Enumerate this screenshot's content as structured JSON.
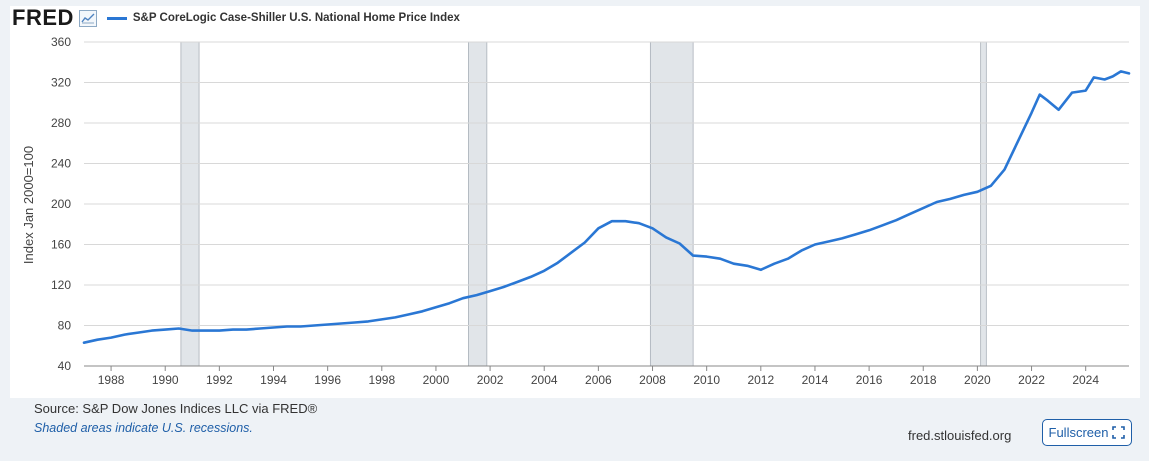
{
  "header": {
    "logo_text": "FRED",
    "badge_icon": "line-chart-icon"
  },
  "colors": {
    "line": "#2a77d4",
    "recession": "#e1e5e9",
    "grid": "#d8d8d8",
    "link": "#1f5fa8"
  },
  "chart_data": {
    "type": "line",
    "title": "",
    "ylabel": "Index Jan 2000=100",
    "xlabel": "",
    "ylim": [
      40,
      360
    ],
    "xlim": [
      1987.0,
      2025.6
    ],
    "yticks": [
      40,
      80,
      120,
      160,
      200,
      240,
      280,
      320,
      360
    ],
    "xticks": [
      1988,
      1990,
      1992,
      1994,
      1996,
      1998,
      2000,
      2002,
      2004,
      2006,
      2008,
      2010,
      2012,
      2014,
      2016,
      2018,
      2020,
      2022,
      2024
    ],
    "grid": true,
    "legend_position": "top-left",
    "recessions": [
      {
        "start": 1990.58,
        "end": 1991.25
      },
      {
        "start": 2001.2,
        "end": 2001.88
      },
      {
        "start": 2007.92,
        "end": 2009.5
      },
      {
        "start": 2020.12,
        "end": 2020.33
      }
    ],
    "series": [
      {
        "name": "S&P CoreLogic Case-Shiller U.S. National Home Price Index",
        "points": [
          [
            1987.0,
            63
          ],
          [
            1987.5,
            66
          ],
          [
            1988.0,
            68
          ],
          [
            1988.5,
            71
          ],
          [
            1989.0,
            73
          ],
          [
            1989.5,
            75
          ],
          [
            1990.0,
            76
          ],
          [
            1990.5,
            77
          ],
          [
            1991.0,
            75
          ],
          [
            1991.5,
            75
          ],
          [
            1992.0,
            75
          ],
          [
            1992.5,
            76
          ],
          [
            1993.0,
            76
          ],
          [
            1993.5,
            77
          ],
          [
            1994.0,
            78
          ],
          [
            1994.5,
            79
          ],
          [
            1995.0,
            79
          ],
          [
            1995.5,
            80
          ],
          [
            1996.0,
            81
          ],
          [
            1996.5,
            82
          ],
          [
            1997.0,
            83
          ],
          [
            1997.5,
            84
          ],
          [
            1998.0,
            86
          ],
          [
            1998.5,
            88
          ],
          [
            1999.0,
            91
          ],
          [
            1999.5,
            94
          ],
          [
            2000.0,
            98
          ],
          [
            2000.5,
            102
          ],
          [
            2001.0,
            107
          ],
          [
            2001.5,
            110
          ],
          [
            2002.0,
            114
          ],
          [
            2002.5,
            118
          ],
          [
            2003.0,
            123
          ],
          [
            2003.5,
            128
          ],
          [
            2004.0,
            134
          ],
          [
            2004.5,
            142
          ],
          [
            2005.0,
            152
          ],
          [
            2005.5,
            162
          ],
          [
            2006.0,
            176
          ],
          [
            2006.5,
            183
          ],
          [
            2007.0,
            183
          ],
          [
            2007.5,
            181
          ],
          [
            2008.0,
            176
          ],
          [
            2008.5,
            167
          ],
          [
            2009.0,
            161
          ],
          [
            2009.5,
            149
          ],
          [
            2010.0,
            148
          ],
          [
            2010.5,
            146
          ],
          [
            2011.0,
            141
          ],
          [
            2011.5,
            139
          ],
          [
            2012.0,
            135
          ],
          [
            2012.5,
            141
          ],
          [
            2013.0,
            146
          ],
          [
            2013.5,
            154
          ],
          [
            2014.0,
            160
          ],
          [
            2014.5,
            163
          ],
          [
            2015.0,
            166
          ],
          [
            2015.5,
            170
          ],
          [
            2016.0,
            174
          ],
          [
            2016.5,
            179
          ],
          [
            2017.0,
            184
          ],
          [
            2017.5,
            190
          ],
          [
            2018.0,
            196
          ],
          [
            2018.5,
            202
          ],
          [
            2019.0,
            205
          ],
          [
            2019.5,
            209
          ],
          [
            2020.0,
            212
          ],
          [
            2020.5,
            218
          ],
          [
            2021.0,
            234
          ],
          [
            2021.5,
            262
          ],
          [
            2022.0,
            290
          ],
          [
            2022.3,
            308
          ],
          [
            2022.6,
            302
          ],
          [
            2023.0,
            293
          ],
          [
            2023.5,
            310
          ],
          [
            2024.0,
            312
          ],
          [
            2024.3,
            325
          ],
          [
            2024.7,
            323
          ],
          [
            2025.0,
            326
          ],
          [
            2025.3,
            331
          ],
          [
            2025.6,
            329
          ]
        ]
      }
    ]
  },
  "footer": {
    "source": "Source: S&P Dow Jones Indices LLC via FRED®",
    "note": "Shaded areas indicate U.S. recessions.",
    "site": "fred.stlouisfed.org",
    "fullscreen_label": "Fullscreen",
    "fullscreen_icon": "expand-icon"
  }
}
